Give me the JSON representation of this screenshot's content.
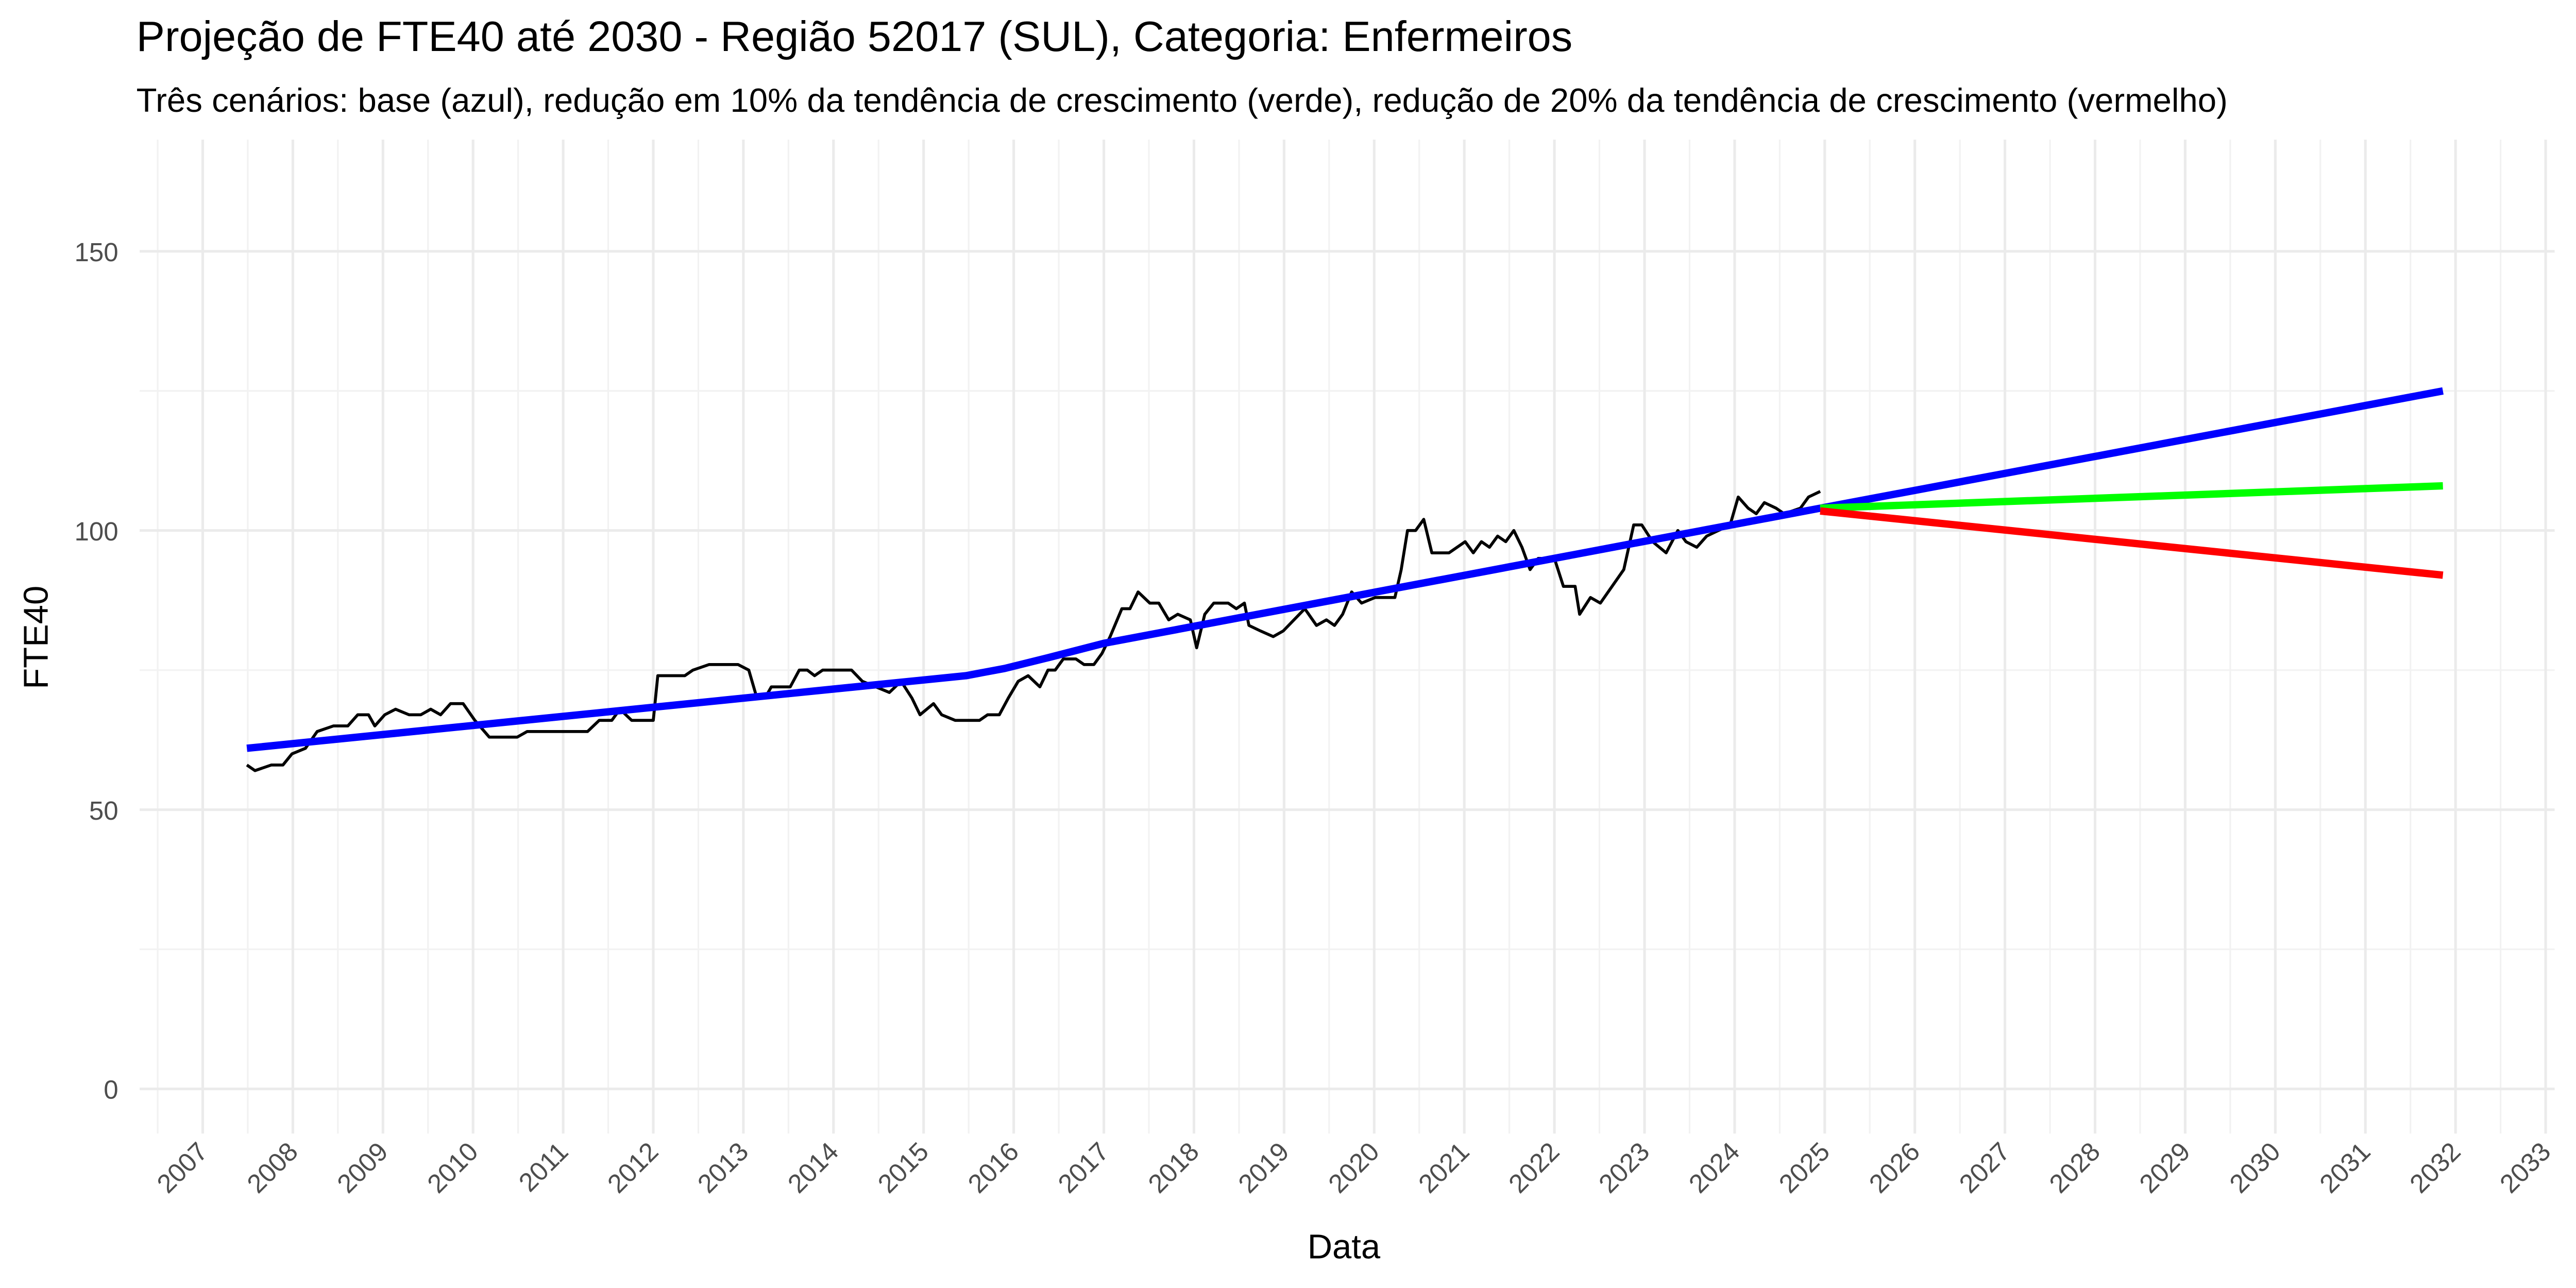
{
  "chart_data": {
    "type": "line",
    "title": "Projeção de FTE40 até 2030 - Região 52017 (SUL), Categoria: Enfermeiros",
    "subtitle": "Três cenários: base (azul), redução em 10% da tendência de crescimento (verde), redução de 20% da tendência de crescimento (vermelho)",
    "x_label": "Data",
    "y_label": "FTE40",
    "xlim": [
      2006.3,
      2033.1
    ],
    "ylim": [
      -8,
      170
    ],
    "xticks": [
      2007,
      2008,
      2009,
      2010,
      2011,
      2012,
      2013,
      2014,
      2015,
      2016,
      2017,
      2018,
      2019,
      2020,
      2021,
      2022,
      2023,
      2024,
      2025,
      2026,
      2027,
      2028,
      2029,
      2030,
      2031,
      2032,
      2033
    ],
    "yticks": [
      0,
      50,
      100,
      150
    ],
    "grid": true,
    "series": [
      {
        "color": "#000000",
        "x": [
          2007.49,
          2007.58,
          2007.76,
          2007.89,
          2007.99,
          2008.14,
          2008.27,
          2008.45,
          2008.61,
          2008.72,
          2008.84,
          2008.91,
          2009.02,
          2009.14,
          2009.29,
          2009.42,
          2009.53,
          2009.64,
          2009.75,
          2009.89,
          2010.02,
          2010.18,
          2010.27,
          2010.49,
          2010.6,
          2011.27,
          2011.4,
          2011.54,
          2011.63,
          2011.76,
          2012.0,
          2012.05,
          2012.35,
          2012.44,
          2012.62,
          2012.94,
          2013.06,
          2013.15,
          2013.24,
          2013.31,
          2013.52,
          2013.62,
          2013.71,
          2013.79,
          2013.88,
          2014.2,
          2014.32,
          2014.47,
          2014.62,
          2014.75,
          2014.87,
          2014.96,
          2015.11,
          2015.2,
          2015.35,
          2015.62,
          2015.71,
          2015.84,
          2015.94,
          2016.05,
          2016.16,
          2016.29,
          2016.38,
          2016.46,
          2016.55,
          2016.69,
          2016.78,
          2016.89,
          2016.98,
          2017.07,
          2017.2,
          2017.29,
          2017.38,
          2017.51,
          2017.61,
          2017.72,
          2017.82,
          2017.96,
          2018.03,
          2018.12,
          2018.22,
          2018.38,
          2018.47,
          2018.56,
          2018.61,
          2018.74,
          2018.88,
          2018.99,
          2019.11,
          2019.23,
          2019.36,
          2019.47,
          2019.56,
          2019.65,
          2019.75,
          2019.86,
          2020.01,
          2020.23,
          2020.3,
          2020.37,
          2020.46,
          2020.55,
          2020.64,
          2020.83,
          2020.92,
          2021.01,
          2021.1,
          2021.19,
          2021.28,
          2021.37,
          2021.46,
          2021.55,
          2021.64,
          2021.73,
          2021.82,
          2021.91,
          2022.0,
          2022.1,
          2022.23,
          2022.28,
          2022.4,
          2022.51,
          2022.64,
          2022.77,
          2022.88,
          2022.97,
          2023.09,
          2023.24,
          2023.37,
          2023.46,
          2023.58,
          2023.69,
          2023.82,
          2023.95,
          2024.04,
          2024.15,
          2024.24,
          2024.33,
          2024.46,
          2024.55,
          2024.73,
          2024.82,
          2024.95
        ],
        "values": [
          58,
          57,
          58,
          58,
          60,
          61,
          64,
          65,
          65,
          67,
          67,
          65,
          67,
          68,
          67,
          67,
          68,
          67,
          69,
          69,
          66,
          63,
          63,
          63,
          64,
          64,
          66,
          66,
          68,
          66,
          66,
          74,
          74,
          75,
          76,
          76,
          75,
          70,
          70,
          72,
          72,
          75,
          75,
          74,
          75,
          75,
          73,
          72,
          71,
          73,
          70,
          67,
          69,
          67,
          66,
          66,
          67,
          67,
          70,
          73,
          74,
          72,
          75,
          75,
          77,
          77,
          76,
          76,
          78,
          81,
          86,
          86,
          89,
          87,
          87,
          84,
          85,
          84,
          79,
          85,
          87,
          87,
          86,
          87,
          83,
          82,
          81,
          82,
          84,
          86,
          83,
          84,
          83,
          85,
          89,
          87,
          88,
          88,
          93,
          100,
          100,
          102,
          96,
          96,
          97,
          98,
          96,
          98,
          97,
          99,
          98,
          100,
          97,
          93,
          95,
          95,
          95,
          90,
          90,
          85,
          88,
          87,
          90,
          93,
          101,
          101,
          98,
          96,
          100,
          98,
          97,
          99,
          100,
          101,
          106,
          104,
          103,
          105,
          104,
          103,
          104,
          106,
          107
        ]
      },
      {
        "color": "#0000ff",
        "x": [
          2007.49,
          2015.47,
          2015.9,
          2016.4,
          2017.0,
          2024.95
        ],
        "values": [
          61,
          74,
          75.3,
          77.3,
          79.8,
          104
        ]
      },
      {
        "color": "#0000ff",
        "x": [
          2024.95,
          2031.86
        ],
        "values": [
          104,
          125
        ]
      },
      {
        "color": "#00ff00",
        "x": [
          2024.95,
          2031.86
        ],
        "values": [
          104,
          108
        ]
      },
      {
        "color": "#ff0000",
        "x": [
          2024.95,
          2031.86
        ],
        "values": [
          103.5,
          92
        ]
      }
    ]
  }
}
